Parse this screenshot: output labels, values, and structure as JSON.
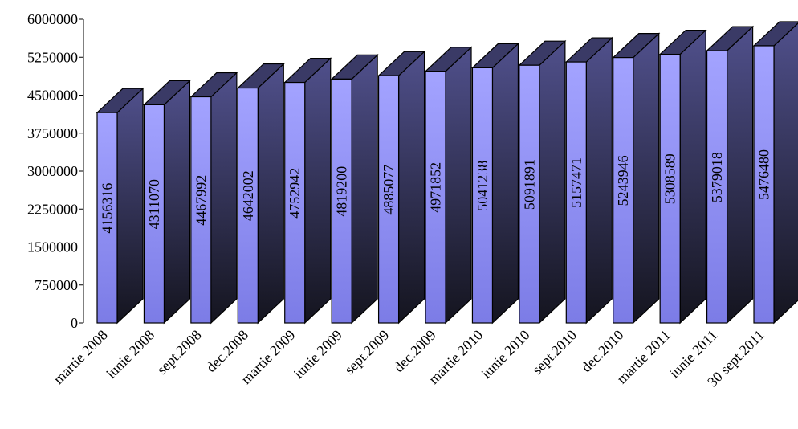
{
  "chart_data": {
    "type": "bar",
    "title": "",
    "xlabel": "",
    "ylabel": "",
    "categories": [
      "martie 2008",
      "iunie 2008",
      "sept.2008",
      "dec.2008",
      "martie 2009",
      "iunie 2009",
      "sept.2009",
      "dec.2009",
      "martie 2010",
      "iunie 2010",
      "sept.2010",
      "dec.2010",
      "martie 2011",
      "iunie 2011",
      "30 sept.2011"
    ],
    "values": [
      4156316,
      4311070,
      4467992,
      4642002,
      4752942,
      4819200,
      4885077,
      4971852,
      5041238,
      5091891,
      5157471,
      5243946,
      5308589,
      5379018,
      5476480
    ],
    "data_labels": [
      "4156316",
      "4311070",
      "4467992",
      "4642002",
      "4752942",
      "4819200",
      "4885077",
      "4971852",
      "5041238",
      "5091891",
      "5157471",
      "5243946",
      "5308589",
      "5379018",
      "5476480"
    ],
    "yticks": [
      "0",
      "750000",
      "1500000",
      "2250000",
      "3000000",
      "3750000",
      "4500000",
      "5250000",
      "6000000"
    ],
    "ylim": [
      0,
      6000000
    ],
    "legend": "none",
    "grid": false,
    "colors": {
      "front_top": "#a3a3ff",
      "front_bottom": "#7c7ce6",
      "side_top": "#50508c",
      "side_bottom": "#14141e",
      "top_face": "#3a3a66",
      "outline": "#000000"
    }
  }
}
